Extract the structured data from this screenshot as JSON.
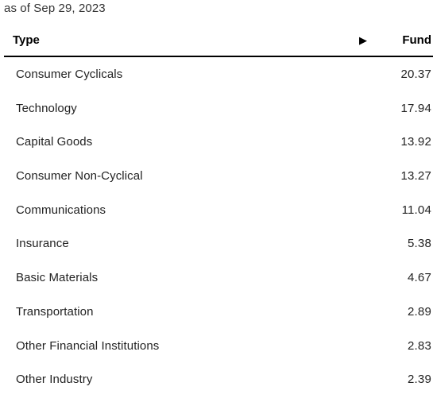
{
  "as_of": "as of Sep 29, 2023",
  "table": {
    "headers": {
      "type": "Type",
      "sort_icon": "▶",
      "fund": "Fund"
    },
    "rows": [
      {
        "type": "Consumer Cyclicals",
        "fund": "20.37"
      },
      {
        "type": "Technology",
        "fund": "17.94"
      },
      {
        "type": "Capital Goods",
        "fund": "13.92"
      },
      {
        "type": "Consumer Non-Cyclical",
        "fund": "13.27"
      },
      {
        "type": "Communications",
        "fund": "11.04"
      },
      {
        "type": "Insurance",
        "fund": "5.38"
      },
      {
        "type": "Basic Materials",
        "fund": "4.67"
      },
      {
        "type": "Transportation",
        "fund": "2.89"
      },
      {
        "type": "Other Financial Institutions",
        "fund": "2.83"
      },
      {
        "type": "Other Industry",
        "fund": "2.39"
      }
    ]
  }
}
